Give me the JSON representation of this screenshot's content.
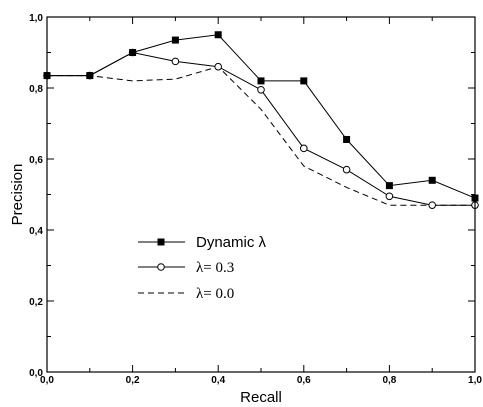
{
  "chart_data": {
    "type": "line",
    "title": "",
    "xlabel": "Recall",
    "ylabel": "Precision",
    "xlim": [
      0.0,
      1.0
    ],
    "ylim": [
      0.0,
      1.0
    ],
    "xticks": [
      "0,0",
      "0,2",
      "0,4",
      "0,6",
      "0,8",
      "1,0"
    ],
    "yticks": [
      "0,0",
      "0,2",
      "0,4",
      "0,6",
      "0,8",
      "1,0"
    ],
    "grid": false,
    "legend_position": "lower-left",
    "series": [
      {
        "name": "Dynamic λ",
        "marker": "filled-square",
        "line": "solid",
        "x": [
          0.0,
          0.1,
          0.2,
          0.3,
          0.4,
          0.5,
          0.6,
          0.7,
          0.8,
          0.9,
          1.0
        ],
        "y": [
          0.835,
          0.835,
          0.9,
          0.935,
          0.95,
          0.82,
          0.82,
          0.655,
          0.525,
          0.54,
          0.49
        ]
      },
      {
        "name": "λ= 0.3",
        "marker": "open-circle",
        "line": "solid",
        "x": [
          0.0,
          0.1,
          0.2,
          0.3,
          0.4,
          0.5,
          0.6,
          0.7,
          0.8,
          0.9,
          1.0
        ],
        "y": [
          0.835,
          0.835,
          0.9,
          0.875,
          0.86,
          0.795,
          0.63,
          0.57,
          0.495,
          0.47,
          0.47
        ]
      },
      {
        "name": "λ= 0.0",
        "marker": "none",
        "line": "dashed",
        "x": [
          0.0,
          0.1,
          0.2,
          0.3,
          0.4,
          0.5,
          0.6,
          0.7,
          0.8,
          0.9,
          1.0
        ],
        "y": [
          0.835,
          0.835,
          0.82,
          0.825,
          0.86,
          0.74,
          0.58,
          0.52,
          0.47,
          0.47,
          0.47
        ]
      }
    ]
  }
}
